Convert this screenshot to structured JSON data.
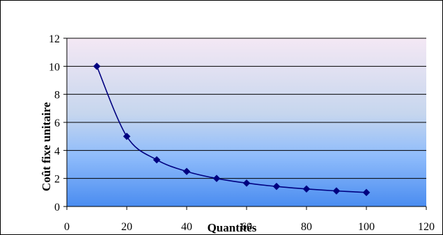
{
  "chart_data": {
    "type": "line",
    "title": "",
    "xlabel": "Quantités",
    "ylabel": "Coût fixe unitaire",
    "x": [
      10,
      20,
      30,
      40,
      50,
      60,
      70,
      80,
      90,
      100
    ],
    "series": [
      {
        "values": [
          10,
          5,
          3.33,
          2.5,
          2,
          1.67,
          1.43,
          1.25,
          1.11,
          1
        ]
      }
    ],
    "xlim": [
      0,
      120
    ],
    "ylim": [
      0,
      12
    ],
    "xticks": [
      "0",
      "20",
      "40",
      "60",
      "80",
      "100",
      "120"
    ],
    "yticks": [
      "0",
      "2",
      "4",
      "6",
      "8",
      "10",
      "12"
    ],
    "grid": "horizontal",
    "line_color": "#000080",
    "marker": "diamond",
    "background_gradient": [
      "#f4e8f4",
      "#4a8cf0"
    ]
  }
}
